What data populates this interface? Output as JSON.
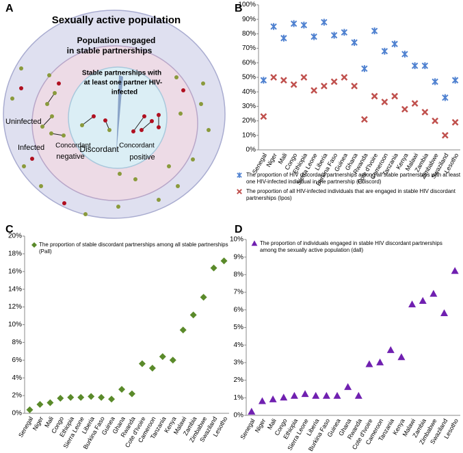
{
  "diagram": {
    "panel_label": "A",
    "labels": [
      {
        "lines": [
          "Sexually active population"
        ]
      },
      {
        "lines": [
          "Population engaged",
          "in stable partnerships"
        ]
      },
      {
        "lines": [
          "Stable partnerships with",
          "at least one partner HIV-",
          "infected"
        ]
      },
      {
        "lines": [
          "Uninfected"
        ]
      },
      {
        "lines": [
          "Infected"
        ]
      },
      {
        "lines": [
          "Concordant",
          "negative"
        ]
      },
      {
        "lines": [
          "Discordant"
        ]
      },
      {
        "lines": [
          "Concordant",
          "positive"
        ]
      }
    ]
  },
  "chart_data": [
    {
      "type": "scatter",
      "panel_label": "B",
      "legend": "bottom",
      "categories": [
        "Senegal",
        "Niger",
        "Mali",
        "Congo",
        "Ethiopia",
        "Sierra Leone",
        "Liberia",
        "Burkina Faso",
        "Guinea",
        "Ghana",
        "Rwanda",
        "Cote d'Ivoire",
        "Cameroon",
        "Tanzania",
        "Kenya",
        "Malawi",
        "Zambia",
        "Zimbabwe",
        "Swaziland",
        "Lesotho"
      ],
      "ylim": [
        0,
        100
      ],
      "yticks": [
        {
          "value": 0,
          "label": "0%"
        },
        {
          "value": 10,
          "label": "10%"
        },
        {
          "value": 20,
          "label": "20%"
        },
        {
          "value": 30,
          "label": "30%"
        },
        {
          "value": 40,
          "label": "40%"
        },
        {
          "value": 50,
          "label": "50%"
        },
        {
          "value": 60,
          "label": "60%"
        },
        {
          "value": 70,
          "label": "70%"
        },
        {
          "value": 80,
          "label": "80%"
        },
        {
          "value": 90,
          "label": "90%"
        },
        {
          "value": 100,
          "label": "100%"
        }
      ],
      "series": [
        {
          "name": "The proportion of HIV discordant partnerships among all stable partnerships with at least one HIV-infected individual in the partnership (Pdiscord)",
          "color": "#4f81d0",
          "marker": "asterisk",
          "values": [
            48,
            85,
            77,
            87,
            86,
            78,
            88,
            79,
            81,
            74,
            56,
            82,
            68,
            73,
            66,
            58,
            58,
            47,
            36,
            48
          ]
        },
        {
          "name": "The proportion of all HIV-infected individuals that are engaged in stable HIV discordant partnerships (Ipos)",
          "color": "#c0504d",
          "marker": "x",
          "values": [
            23,
            50,
            48,
            45,
            50,
            41,
            44,
            47,
            50,
            44,
            21,
            37,
            33,
            37,
            28,
            32,
            26,
            20,
            10,
            19
          ]
        }
      ]
    },
    {
      "type": "scatter",
      "panel_label": "C",
      "legend": "top-left",
      "categories": [
        "Senegal",
        "Niger",
        "Mali",
        "Congo",
        "Ethiopia",
        "Sierra Leone",
        "Liberia",
        "Burkina Faso",
        "Guinea",
        "Ghana",
        "Rwanda",
        "Cote d'Ivoire",
        "Cameroon",
        "Tanzania",
        "Kenya",
        "Malawi",
        "Zambia",
        "Zimbabwe",
        "Swaziland",
        "Lesotho"
      ],
      "ylim": [
        0,
        20
      ],
      "yticks": [
        {
          "value": 0,
          "label": "0%"
        },
        {
          "value": 2,
          "label": "2%"
        },
        {
          "value": 4,
          "label": "4%"
        },
        {
          "value": 6,
          "label": "6%"
        },
        {
          "value": 8,
          "label": "8%"
        },
        {
          "value": 10,
          "label": "10%"
        },
        {
          "value": 12,
          "label": "12%"
        },
        {
          "value": 14,
          "label": "14%"
        },
        {
          "value": 16,
          "label": "16%"
        },
        {
          "value": 18,
          "label": "18%"
        },
        {
          "value": 20,
          "label": "20%"
        }
      ],
      "series": [
        {
          "name": "The proportion of stable discordant partnerships among all stable partnerships (Pall)",
          "color": "#5a8a2a",
          "marker": "diamond",
          "values": [
            0.4,
            1.0,
            1.2,
            1.7,
            1.8,
            1.8,
            1.9,
            1.8,
            1.6,
            2.7,
            2.2,
            5.6,
            5.1,
            6.4,
            6.0,
            9.4,
            11.1,
            13.1,
            16.4,
            17.2
          ]
        }
      ]
    },
    {
      "type": "scatter",
      "panel_label": "D",
      "legend": "top-left",
      "categories": [
        "Senegal",
        "Niger",
        "Mali",
        "Congo",
        "Ethiopia",
        "Sierra Leone",
        "Liberia",
        "Burkina Faso",
        "Guinea",
        "Ghana",
        "Rwanda",
        "Cote d'Ivoire",
        "Cameroon",
        "Tanzania",
        "Kenya",
        "Malawi",
        "Zambia",
        "Zimbabwe",
        "Swaziland",
        "Lesotho"
      ],
      "ylim": [
        0,
        10
      ],
      "yticks": [
        {
          "value": 0,
          "label": "0%"
        },
        {
          "value": 1,
          "label": "1%"
        },
        {
          "value": 2,
          "label": "2%"
        },
        {
          "value": 3,
          "label": "3%"
        },
        {
          "value": 4,
          "label": "4%"
        },
        {
          "value": 5,
          "label": "5%"
        },
        {
          "value": 6,
          "label": "6%"
        },
        {
          "value": 7,
          "label": "7%"
        },
        {
          "value": 8,
          "label": "8%"
        },
        {
          "value": 9,
          "label": "9%"
        },
        {
          "value": 10,
          "label": "10%"
        }
      ],
      "series": [
        {
          "name": "The proportion of individuals engaged in stable HIV discordant partnerships among the sexually active population (dall)",
          "color": "#7020b0",
          "marker": "triangle",
          "values": [
            0.2,
            0.8,
            0.9,
            1.0,
            1.1,
            1.2,
            1.1,
            1.1,
            1.1,
            1.6,
            1.1,
            2.9,
            3.0,
            3.7,
            3.3,
            6.3,
            6.5,
            6.9,
            5.8,
            8.2
          ]
        }
      ]
    }
  ]
}
